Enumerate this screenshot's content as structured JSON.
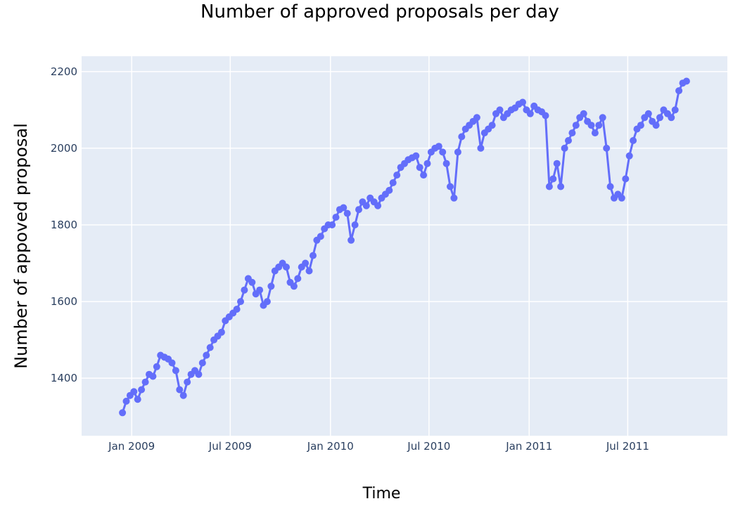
{
  "chart_data": {
    "type": "scatter",
    "mode": "lines+markers",
    "title": "Number of approved proposals per day",
    "xlabel": "Time",
    "ylabel": "Number of appoved proposal",
    "xlim": [
      "2008-10-01",
      "2011-12-31"
    ],
    "ylim": [
      1250,
      2240
    ],
    "x_ticks": [
      {
        "label": "Jan 2009",
        "date": "2009-01-01"
      },
      {
        "label": "Jul 2009",
        "date": "2009-07-01"
      },
      {
        "label": "Jan 2010",
        "date": "2010-01-01"
      },
      {
        "label": "Jul 2010",
        "date": "2010-07-01"
      },
      {
        "label": "Jan 2011",
        "date": "2011-01-01"
      },
      {
        "label": "Jul 2011",
        "date": "2011-07-01"
      }
    ],
    "y_ticks": [
      1400,
      1600,
      1800,
      2000,
      2200
    ],
    "grid": true,
    "colors": {
      "series": "#636efa",
      "plot_bg": "#e5ecf6",
      "grid": "#ffffff"
    },
    "series": [
      {
        "x": [
          "2008-12-15",
          "2008-12-22",
          "2008-12-29",
          "2009-01-05",
          "2009-01-12",
          "2009-01-19",
          "2009-01-26",
          "2009-02-02",
          "2009-02-09",
          "2009-02-16",
          "2009-02-23",
          "2009-03-02",
          "2009-03-09",
          "2009-03-16",
          "2009-03-23",
          "2009-03-30",
          "2009-04-06",
          "2009-04-13",
          "2009-04-20",
          "2009-04-27",
          "2009-05-04",
          "2009-05-11",
          "2009-05-18",
          "2009-05-25",
          "2009-06-01",
          "2009-06-08",
          "2009-06-15",
          "2009-06-22",
          "2009-06-29",
          "2009-07-06",
          "2009-07-13",
          "2009-07-20",
          "2009-07-27",
          "2009-08-03",
          "2009-08-10",
          "2009-08-17",
          "2009-08-24",
          "2009-08-31",
          "2009-09-07",
          "2009-09-14",
          "2009-09-21",
          "2009-09-28",
          "2009-10-05",
          "2009-10-12",
          "2009-10-19",
          "2009-10-26",
          "2009-11-02",
          "2009-11-09",
          "2009-11-16",
          "2009-11-23",
          "2009-11-30",
          "2009-12-07",
          "2009-12-14",
          "2009-12-21",
          "2009-12-28",
          "2010-01-04",
          "2010-01-11",
          "2010-01-18",
          "2010-01-25",
          "2010-02-01",
          "2010-02-08",
          "2010-02-15",
          "2010-02-22",
          "2010-03-01",
          "2010-03-08",
          "2010-03-15",
          "2010-03-22",
          "2010-03-29",
          "2010-04-05",
          "2010-04-12",
          "2010-04-19",
          "2010-04-26",
          "2010-05-03",
          "2010-05-10",
          "2010-05-17",
          "2010-05-24",
          "2010-05-31",
          "2010-06-07",
          "2010-06-14",
          "2010-06-21",
          "2010-06-28",
          "2010-07-05",
          "2010-07-12",
          "2010-07-19",
          "2010-07-26",
          "2010-08-02",
          "2010-08-09",
          "2010-08-16",
          "2010-08-23",
          "2010-08-30",
          "2010-09-06",
          "2010-09-13",
          "2010-09-20",
          "2010-09-27",
          "2010-10-04",
          "2010-10-11",
          "2010-10-18",
          "2010-10-25",
          "2010-11-01",
          "2010-11-08",
          "2010-11-15",
          "2010-11-22",
          "2010-11-29",
          "2010-12-06",
          "2010-12-13",
          "2010-12-20",
          "2010-12-27",
          "2011-01-03",
          "2011-01-10",
          "2011-01-17",
          "2011-01-24",
          "2011-01-31",
          "2011-02-07",
          "2011-02-14",
          "2011-02-21",
          "2011-02-28",
          "2011-03-07",
          "2011-03-14",
          "2011-03-21",
          "2011-03-28",
          "2011-04-04",
          "2011-04-11",
          "2011-04-18",
          "2011-04-25",
          "2011-05-02",
          "2011-05-09",
          "2011-05-16",
          "2011-05-23",
          "2011-05-30",
          "2011-06-06",
          "2011-06-13",
          "2011-06-20",
          "2011-06-27",
          "2011-07-04",
          "2011-07-11",
          "2011-07-18",
          "2011-07-25",
          "2011-08-01",
          "2011-08-08",
          "2011-08-15",
          "2011-08-22",
          "2011-08-29",
          "2011-09-05",
          "2011-09-12",
          "2011-09-19",
          "2011-09-26",
          "2011-10-03",
          "2011-10-10",
          "2011-10-17"
        ],
        "y": [
          1310,
          1340,
          1355,
          1365,
          1345,
          1370,
          1390,
          1410,
          1405,
          1430,
          1460,
          1455,
          1450,
          1440,
          1420,
          1370,
          1355,
          1390,
          1410,
          1420,
          1410,
          1440,
          1460,
          1480,
          1500,
          1510,
          1520,
          1550,
          1560,
          1570,
          1580,
          1600,
          1630,
          1660,
          1650,
          1620,
          1630,
          1590,
          1600,
          1640,
          1680,
          1690,
          1700,
          1690,
          1650,
          1640,
          1660,
          1690,
          1700,
          1680,
          1720,
          1760,
          1770,
          1790,
          1800,
          1800,
          1820,
          1840,
          1845,
          1830,
          1760,
          1800,
          1840,
          1860,
          1850,
          1870,
          1860,
          1850,
          1870,
          1880,
          1890,
          1910,
          1930,
          1950,
          1960,
          1970,
          1975,
          1980,
          1950,
          1930,
          1960,
          1990,
          2000,
          2005,
          1990,
          1960,
          1900,
          1870,
          1990,
          2030,
          2050,
          2060,
          2070,
          2080,
          2000,
          2040,
          2050,
          2060,
          2090,
          2100,
          2080,
          2090,
          2100,
          2105,
          2115,
          2120,
          2100,
          2090,
          2110,
          2100,
          2095,
          2085,
          1900,
          1920,
          1960,
          1900,
          2000,
          2020,
          2040,
          2060,
          2080,
          2090,
          2070,
          2060,
          2040,
          2060,
          2080,
          2000,
          1900,
          1870,
          1880,
          1870,
          1920,
          1980,
          2020,
          2050,
          2060,
          2080,
          2090,
          2070,
          2060,
          2080,
          2100,
          2090,
          2080,
          2100,
          2150,
          2170,
          2175
        ]
      }
    ]
  }
}
